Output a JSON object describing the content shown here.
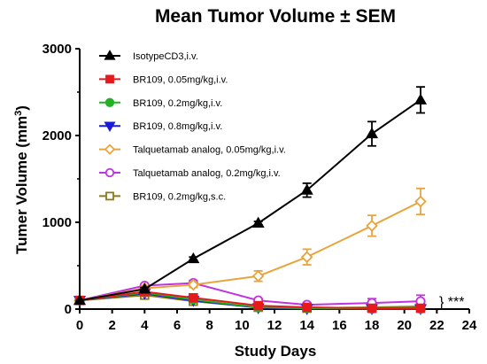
{
  "chart_data": {
    "type": "line",
    "title": "Mean Tumor Volume ± SEM",
    "xlabel": "Study Days",
    "ylabel_main": "Tumer Volume (mm",
    "ylabel_sup": "3",
    "ylabel_close": ")",
    "xlim": [
      0,
      24
    ],
    "ylim": [
      0,
      3000
    ],
    "xticks": [
      0,
      2,
      4,
      6,
      8,
      10,
      12,
      14,
      16,
      18,
      20,
      22,
      24
    ],
    "yticks": [
      0,
      1000,
      2000,
      3000
    ],
    "grid": false,
    "legend_position": "top-left",
    "annotation": "} ***",
    "series": [
      {
        "name": "IsotypeCD3,i.v.",
        "color": "#000000",
        "marker": "triangle-up",
        "filled": true,
        "x": [
          0,
          4,
          7,
          11,
          14,
          18,
          21
        ],
        "y": [
          100,
          230,
          580,
          990,
          1370,
          2020,
          2410
        ],
        "err": [
          0,
          20,
          20,
          20,
          80,
          140,
          150
        ]
      },
      {
        "name": "BR109, 0.05mg/kg,i.v.",
        "color": "#e41a1c",
        "marker": "square",
        "filled": true,
        "x": [
          0,
          4,
          7,
          11,
          14,
          18,
          21
        ],
        "y": [
          100,
          200,
          130,
          40,
          20,
          10,
          10
        ],
        "err": [
          0,
          15,
          10,
          5,
          5,
          5,
          5
        ]
      },
      {
        "name": "BR109, 0.2mg/kg,i.v.",
        "color": "#22b322",
        "marker": "circle",
        "filled": true,
        "x": [
          0,
          4,
          7,
          11,
          14,
          18,
          21
        ],
        "y": [
          100,
          190,
          110,
          20,
          10,
          5,
          5
        ],
        "err": [
          0,
          15,
          10,
          5,
          5,
          5,
          5
        ]
      },
      {
        "name": "BR109, 0.8mg/kg,i.v.",
        "color": "#1a1adb",
        "marker": "triangle-down",
        "filled": true,
        "x": [
          0,
          4,
          7,
          11,
          14,
          18,
          21
        ],
        "y": [
          100,
          180,
          100,
          15,
          5,
          5,
          5
        ],
        "err": [
          0,
          15,
          10,
          5,
          5,
          5,
          5
        ]
      },
      {
        "name": "Talquetamab analog, 0.05mg/kg,i.v.",
        "color": "#e8a43c",
        "marker": "diamond",
        "filled": false,
        "x": [
          0,
          4,
          7,
          11,
          14,
          18,
          21
        ],
        "y": [
          100,
          240,
          280,
          380,
          600,
          960,
          1240
        ],
        "err": [
          0,
          20,
          30,
          60,
          90,
          120,
          150
        ]
      },
      {
        "name": "Talquetamab analog, 0.2mg/kg,i.v.",
        "color": "#c033e0",
        "marker": "circle",
        "filled": false,
        "x": [
          0,
          4,
          7,
          11,
          14,
          18,
          21
        ],
        "y": [
          100,
          270,
          300,
          100,
          50,
          70,
          90
        ],
        "err": [
          0,
          20,
          30,
          20,
          15,
          50,
          70
        ]
      },
      {
        "name": "BR109, 0.2mg/kg,s.c.",
        "color": "#8b7a1a",
        "marker": "square",
        "filled": false,
        "x": [
          0,
          4,
          7,
          11,
          14,
          18,
          21
        ],
        "y": [
          100,
          160,
          90,
          20,
          10,
          20,
          30
        ],
        "err": [
          0,
          15,
          10,
          5,
          5,
          10,
          10
        ]
      }
    ]
  }
}
